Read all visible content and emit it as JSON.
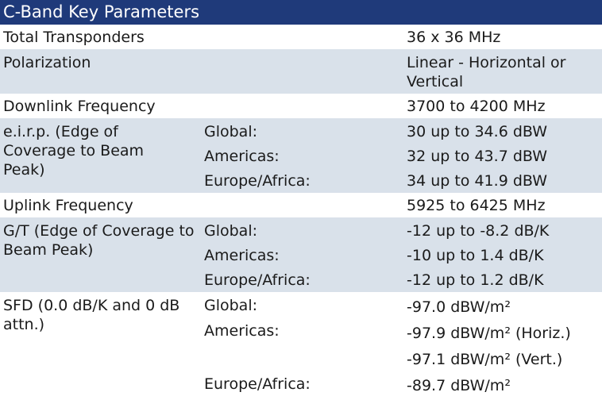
{
  "title": "C-Band Key Parameters",
  "rows": {
    "total_transponders": {
      "label": "Total Transponders",
      "value": "36 x 36 MHz"
    },
    "polarization": {
      "label": "Polarization",
      "value": "Linear - Horizontal or Vertical"
    },
    "downlink": {
      "label": "Downlink Frequency",
      "value": "3700 to 4200 MHz"
    },
    "eirp": {
      "label": "e.i.r.p. (Edge of Coverage to Beam Peak)",
      "global_label": "Global:",
      "global_value": "30 up to 34.6 dBW",
      "americas_label": "Americas:",
      "americas_value": "32 up to 43.7 dBW",
      "europe_label": "Europe/Africa:",
      "europe_value": "34 up to 41.9 dBW"
    },
    "uplink": {
      "label": "Uplink Frequency",
      "value": "5925 to 6425 MHz"
    },
    "gt": {
      "label": "G/T (Edge of Coverage to Beam Peak)",
      "global_label": "Global:",
      "global_value": "-12 up to -8.2 dB/K",
      "americas_label": "Americas:",
      "americas_value": "-10 up to 1.4 dB/K",
      "europe_label": "Europe/Africa:",
      "europe_value": "-12 up to 1.2 dB/K"
    },
    "sfd": {
      "label": "SFD (0.0 dB/K and 0 dB attn.)",
      "global_label": "Global:",
      "global_value": "-97.0 dBW/m²",
      "americas_label": "Americas:",
      "americas_value_horiz": "-97.9 dBW/m² (Horiz.)",
      "americas_value_vert": "-97.1 dBW/m² (Vert.)",
      "europe_label": "Europe/Africa:",
      "europe_value": "-89.7 dBW/m²"
    }
  }
}
